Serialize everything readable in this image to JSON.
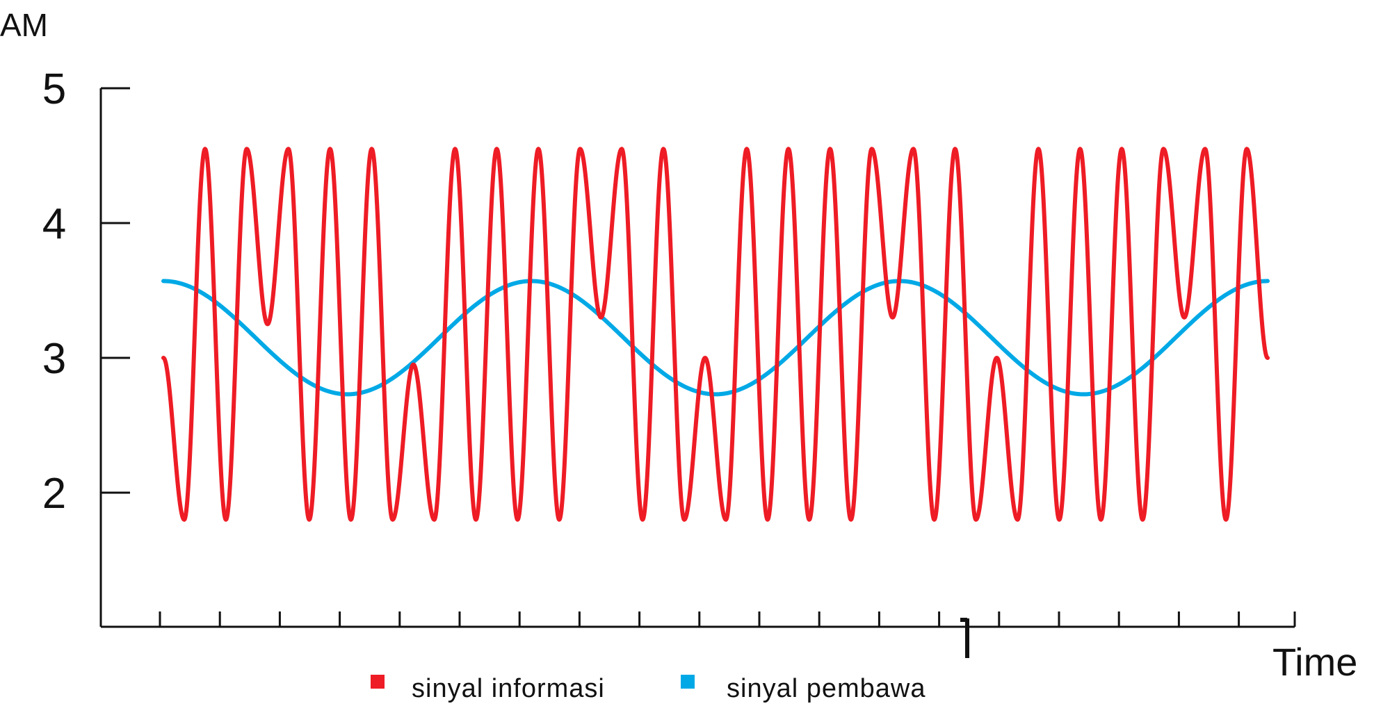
{
  "chart_data": {
    "type": "line",
    "title": "",
    "xlabel": "Time",
    "ylabel": "AM",
    "ylim": [
      1.0,
      5.0
    ],
    "yticks": [
      2,
      3,
      4,
      5
    ],
    "y_tick_labels": [
      "2",
      "3",
      "4",
      "5"
    ],
    "xlim": [
      0,
      20
    ],
    "x_minor_ticks": 19,
    "x_major_tick": 14.6,
    "grid": false,
    "legend_position": "bottom-center",
    "series": [
      {
        "name": "sinyal informasi",
        "color": "#ee1c25",
        "x_range": [
          1,
          19.4
        ],
        "note_shape": "carrier 2.8-4.6 with phase dips",
        "x": [
          1.0,
          1.35,
          1.7,
          2.05,
          2.4,
          2.75,
          3.1,
          3.45,
          3.8,
          4.15,
          4.5,
          4.85,
          5.2,
          5.55,
          5.9,
          6.25,
          6.6,
          6.95,
          7.3,
          7.65,
          8.0,
          8.35,
          8.7,
          9.05,
          9.4,
          9.75,
          10.1,
          10.45,
          10.8,
          11.15,
          11.5,
          11.85,
          12.2,
          12.55,
          12.9,
          13.25,
          13.6,
          13.95,
          14.3,
          14.65,
          15.0,
          15.35,
          15.7,
          16.05,
          16.4,
          16.75,
          17.1,
          17.45,
          17.8,
          18.15,
          18.5,
          18.85,
          19.2,
          19.4
        ],
        "y": [
          3.0,
          1.8,
          4.55,
          1.8,
          4.55,
          3.25,
          4.55,
          1.8,
          4.55,
          1.8,
          4.55,
          1.8,
          2.95,
          1.8,
          4.55,
          1.8,
          4.55,
          1.8,
          4.55,
          1.8,
          4.55,
          3.3,
          4.55,
          1.8,
          4.55,
          1.8,
          3.0,
          1.8,
          4.55,
          1.8,
          4.55,
          1.8,
          4.55,
          1.8,
          4.55,
          3.3,
          4.55,
          1.8,
          4.55,
          1.8,
          3.0,
          1.8,
          4.55,
          1.8,
          4.55,
          1.8,
          4.55,
          1.8,
          4.55,
          3.3,
          4.55,
          1.8,
          4.55,
          3.0
        ]
      },
      {
        "name": "sinyal pembawa",
        "color": "#00a9e6",
        "x_range": [
          1,
          19.4
        ],
        "center": 3.15,
        "amplitude": 0.42,
        "cycles": 3
      }
    ]
  },
  "colors": {
    "axis": "#111111",
    "info": "#ee1c25",
    "carrier": "#00a9e6"
  }
}
